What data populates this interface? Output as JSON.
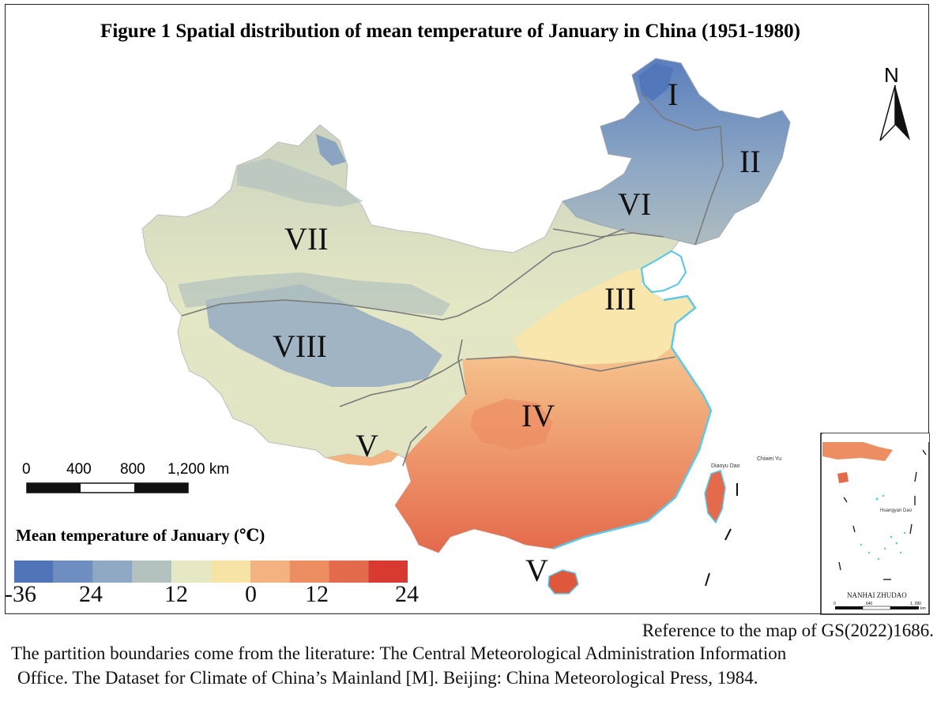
{
  "title": "Figure 1  Spatial distribution of mean temperature of January in China (1951-1980)",
  "north": "N",
  "regions": [
    "I",
    "II",
    "III",
    "IV",
    "V",
    "VI",
    "VII",
    "VIII",
    "V"
  ],
  "scale": {
    "labels": [
      "0",
      "400",
      "800",
      "1,200 km"
    ]
  },
  "legend": {
    "title": "Mean temperature of January (℃)",
    "ticks": [
      "-36",
      "24",
      "12",
      "0",
      "12",
      "24"
    ],
    "colors": [
      "#4f74b8",
      "#6e8ec2",
      "#8fa8c4",
      "#b4c2bf",
      "#e6e8c4",
      "#f8e3a6",
      "#f3b27f",
      "#ec8d62",
      "#e46a4c",
      "#d83a32"
    ]
  },
  "islands": {
    "diaoyu": "Diaoyu Dao",
    "chiwei": "Chiwei Yu",
    "huangyan": "Huangyan Dao"
  },
  "inset": {
    "title": "NANHAI ZHUDAO",
    "scale": [
      "0",
      "640",
      "1, 280"
    ],
    "unit": "km"
  },
  "credits": {
    "reference": "Reference to the map of GS(2022)1686.",
    "partition_line1": "The partition boundaries come from the literature:  The Central Meteorological Administration Information",
    "partition_line2": "Office. The Dataset for Climate of China’s Mainland [M]. Beijing:  China Meteorological Press, 1984."
  }
}
